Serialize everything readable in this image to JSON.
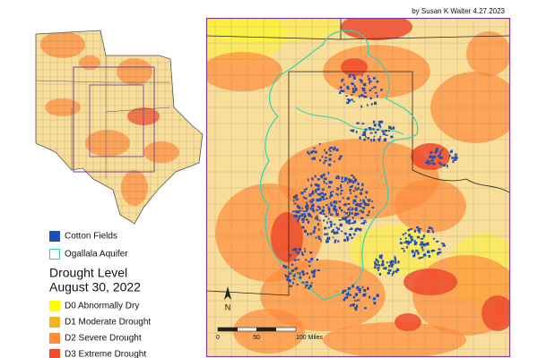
{
  "credit": "by Susan K Walter 4.27.2023",
  "layers": [
    {
      "label": "Cotton Fields",
      "color": "#1f4fb5"
    },
    {
      "label": "Ogallala Aquifer",
      "color": "#2fd3b0"
    }
  ],
  "drought_legend": {
    "title": "Drought Level",
    "date": "August 30, 2022",
    "levels": [
      {
        "label": "D0 Abnormally Dry",
        "color": "#ffff00"
      },
      {
        "label": "D1 Moderate Drought",
        "color": "#f2b51f"
      },
      {
        "label": "D2 Severe Drought",
        "color": "#ff8c3a"
      },
      {
        "label": "D3 Extreme Drought",
        "color": "#f04a2a"
      }
    ]
  },
  "scale_bar": {
    "labels": [
      "0",
      "50",
      "100 Miles"
    ]
  },
  "north_arrow": "N"
}
